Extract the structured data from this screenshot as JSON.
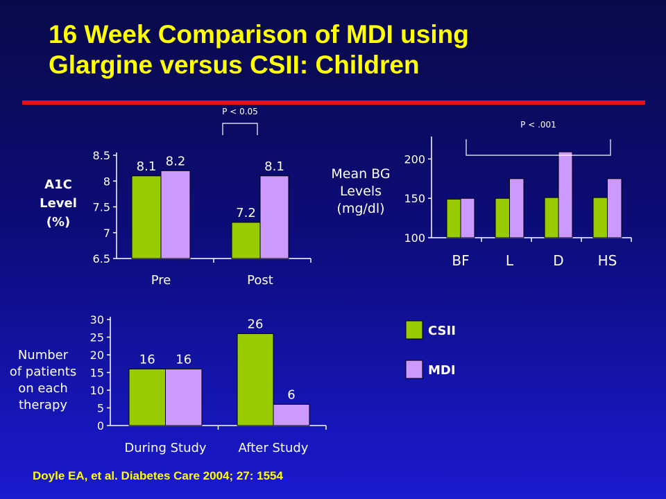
{
  "slide": {
    "title_line1": "16 Week Comparison of MDI using",
    "title_line2": "Glargine versus CSII: Children",
    "citation": "Doyle EA, et al. Diabetes Care 2004; 27: 1554"
  },
  "colors": {
    "CSII": "#99cc00",
    "MDI": "#cc99ff",
    "title": "#ffff00",
    "rule": "#e8101a",
    "axis_text": "#ffffff"
  },
  "legend": [
    {
      "name": "CSII",
      "color": "#99cc00"
    },
    {
      "name": "MDI",
      "color": "#cc99ff"
    }
  ],
  "chart_data": [
    {
      "id": "a1c",
      "type": "bar",
      "ylabel": [
        "A1C",
        "Level",
        "(%)"
      ],
      "ylabel_bold": true,
      "categories": [
        "Pre",
        "Post"
      ],
      "series": [
        {
          "name": "CSII",
          "values": [
            8.1,
            7.2
          ],
          "labels": [
            "8.1",
            "7.2"
          ]
        },
        {
          "name": "MDI",
          "values": [
            8.2,
            8.1
          ],
          "labels": [
            "8.2",
            "8.1"
          ]
        }
      ],
      "ylim": [
        6.5,
        8.5
      ],
      "yticks": [
        6.5,
        7,
        7.5,
        8,
        8.5
      ],
      "ytick_labels": [
        "6.5",
        "7",
        "7.5",
        "8",
        "8.5"
      ],
      "annotation": {
        "text": "P < 0.05",
        "from_category": 0,
        "to_category": 1
      }
    },
    {
      "id": "meanbg",
      "type": "bar",
      "ylabel": [
        "Mean BG",
        "Levels",
        "(mg/dl)"
      ],
      "ylabel_bold": false,
      "categories": [
        "BF",
        "L",
        "D",
        "HS"
      ],
      "series": [
        {
          "name": "CSII",
          "values": [
            149,
            150,
            151,
            151
          ]
        },
        {
          "name": "MDI",
          "values": [
            150,
            175,
            209,
            175
          ]
        }
      ],
      "ylim": [
        100,
        225
      ],
      "yticks": [
        100,
        150,
        200
      ],
      "ytick_labels": [
        "100",
        "150",
        "200"
      ],
      "annotation": {
        "text": "P < .001",
        "from_category": 0,
        "to_category": 3
      }
    },
    {
      "id": "patients",
      "type": "bar",
      "ylabel": [
        "Number",
        "of patients",
        "on each",
        "therapy"
      ],
      "ylabel_bold": false,
      "categories": [
        "During Study",
        "After Study"
      ],
      "series": [
        {
          "name": "CSII",
          "values": [
            16,
            26
          ],
          "labels": [
            "16",
            "26"
          ]
        },
        {
          "name": "MDI",
          "values": [
            16,
            6
          ],
          "labels": [
            "16",
            "6"
          ]
        }
      ],
      "ylim": [
        0,
        30
      ],
      "yticks": [
        0,
        5,
        10,
        15,
        20,
        25,
        30
      ],
      "ytick_labels": [
        "0",
        "5",
        "10",
        "15",
        "20",
        "25",
        "30"
      ]
    }
  ]
}
